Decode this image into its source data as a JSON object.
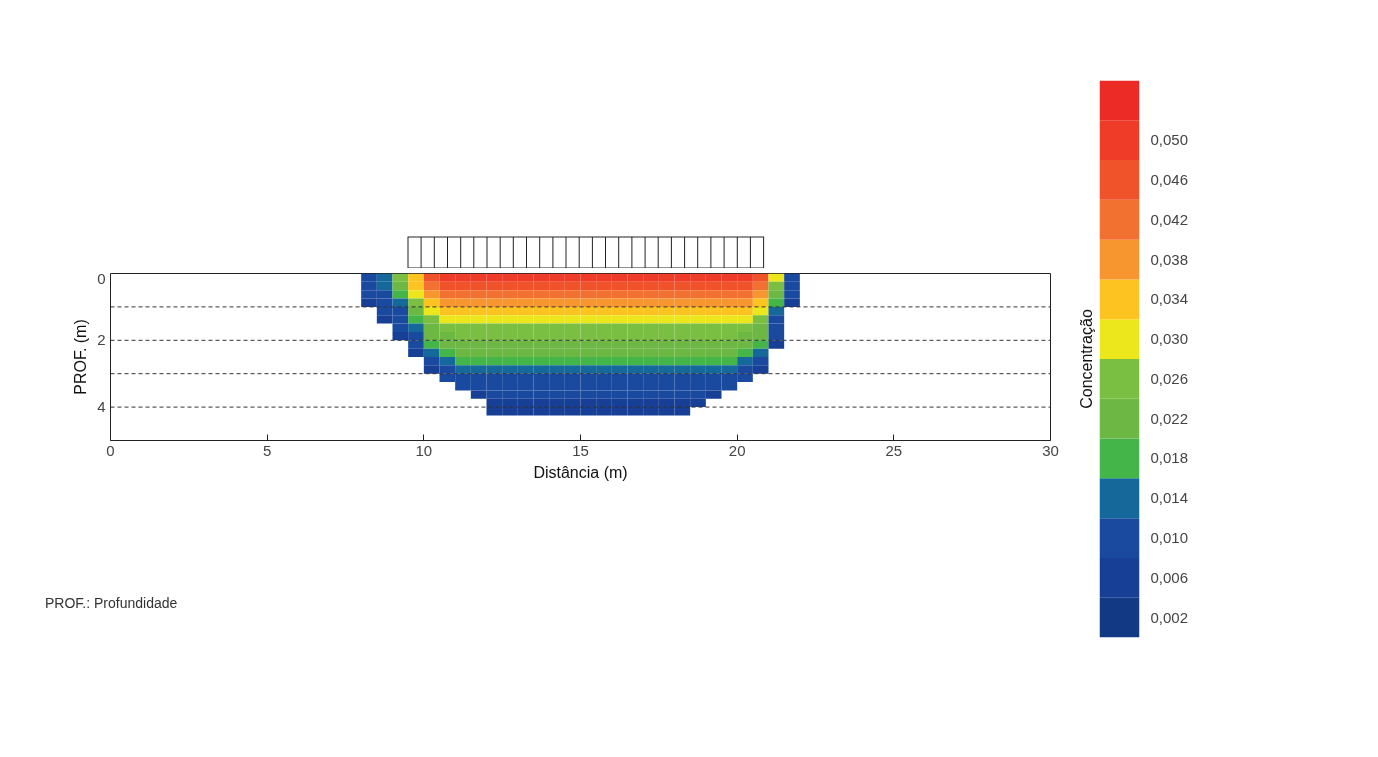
{
  "chart_data": {
    "type": "heatmap",
    "xlabel": "Distância (m)",
    "ylabel": "PROF. (m)",
    "clabel": "Concentração",
    "annotations": [
      "PROF.: Profundidade"
    ],
    "x": [
      8.25,
      8.75,
      9.25,
      9.75,
      10.25,
      10.75,
      11.25,
      11.75,
      12.25,
      12.75,
      13.25,
      13.75,
      14.25,
      14.75,
      15.25,
      15.75,
      16.25,
      16.75,
      17.25,
      17.75,
      18.25,
      18.75,
      19.25,
      19.75,
      20.25,
      20.75,
      21.25,
      21.75
    ],
    "y": [
      0.125,
      0.375,
      0.625,
      0.875,
      1.125,
      1.375,
      1.625,
      1.875,
      2.125,
      2.375,
      2.625,
      2.875,
      3.125,
      3.375,
      3.625,
      3.875,
      4.125
    ],
    "cells": [
      [
        0.01,
        0.014,
        0.026,
        0.034,
        0.046,
        0.05,
        0.05,
        0.05,
        0.05,
        0.05,
        0.05,
        0.05,
        0.05,
        0.05,
        0.05,
        0.05,
        0.05,
        0.05,
        0.05,
        0.05,
        0.05,
        0.05,
        0.05,
        0.05,
        0.05,
        0.046,
        0.03,
        0.01
      ],
      [
        0.01,
        0.014,
        0.022,
        0.034,
        0.042,
        0.046,
        0.046,
        0.046,
        0.046,
        0.046,
        0.046,
        0.046,
        0.046,
        0.046,
        0.046,
        0.046,
        0.046,
        0.046,
        0.046,
        0.046,
        0.046,
        0.046,
        0.046,
        0.046,
        0.046,
        0.042,
        0.026,
        0.01
      ],
      [
        0.01,
        0.01,
        0.018,
        0.03,
        0.038,
        0.042,
        0.042,
        0.042,
        0.042,
        0.042,
        0.042,
        0.042,
        0.042,
        0.042,
        0.042,
        0.042,
        0.042,
        0.042,
        0.042,
        0.042,
        0.042,
        0.042,
        0.042,
        0.042,
        0.042,
        0.038,
        0.022,
        0.01
      ],
      [
        0.006,
        0.01,
        0.014,
        0.026,
        0.034,
        0.038,
        0.038,
        0.038,
        0.038,
        0.038,
        0.038,
        0.038,
        0.038,
        0.038,
        0.038,
        0.038,
        0.038,
        0.038,
        0.038,
        0.038,
        0.038,
        0.038,
        0.038,
        0.038,
        0.038,
        0.034,
        0.018,
        0.006
      ],
      [
        null,
        0.01,
        0.01,
        0.022,
        0.03,
        0.034,
        0.034,
        0.034,
        0.034,
        0.034,
        0.034,
        0.034,
        0.034,
        0.034,
        0.034,
        0.034,
        0.034,
        0.034,
        0.034,
        0.034,
        0.034,
        0.034,
        0.034,
        0.034,
        0.034,
        0.03,
        0.014,
        null
      ],
      [
        null,
        0.006,
        0.01,
        0.018,
        0.026,
        0.03,
        0.03,
        0.03,
        0.03,
        0.03,
        0.03,
        0.03,
        0.03,
        0.03,
        0.03,
        0.03,
        0.03,
        0.03,
        0.03,
        0.03,
        0.03,
        0.03,
        0.03,
        0.03,
        0.03,
        0.026,
        0.01,
        null
      ],
      [
        null,
        null,
        0.01,
        0.014,
        0.022,
        0.026,
        0.026,
        0.026,
        0.026,
        0.026,
        0.026,
        0.026,
        0.026,
        0.026,
        0.026,
        0.026,
        0.026,
        0.026,
        0.026,
        0.026,
        0.026,
        0.026,
        0.026,
        0.026,
        0.026,
        0.022,
        0.01,
        null
      ],
      [
        null,
        null,
        0.006,
        0.01,
        0.022,
        0.022,
        0.026,
        0.026,
        0.026,
        0.026,
        0.026,
        0.026,
        0.026,
        0.026,
        0.026,
        0.026,
        0.026,
        0.026,
        0.026,
        0.026,
        0.026,
        0.026,
        0.026,
        0.026,
        0.022,
        0.022,
        0.01,
        null
      ],
      [
        null,
        null,
        null,
        0.01,
        0.018,
        0.022,
        0.022,
        0.022,
        0.022,
        0.022,
        0.022,
        0.022,
        0.022,
        0.022,
        0.022,
        0.022,
        0.022,
        0.022,
        0.022,
        0.022,
        0.022,
        0.022,
        0.022,
        0.022,
        0.022,
        0.018,
        0.006,
        null
      ],
      [
        null,
        null,
        null,
        0.006,
        0.014,
        0.018,
        0.022,
        0.022,
        0.022,
        0.022,
        0.022,
        0.022,
        0.022,
        0.022,
        0.022,
        0.022,
        0.022,
        0.022,
        0.022,
        0.022,
        0.022,
        0.022,
        0.022,
        0.022,
        0.018,
        0.014,
        null,
        null
      ],
      [
        null,
        null,
        null,
        null,
        0.01,
        0.014,
        0.018,
        0.018,
        0.018,
        0.018,
        0.018,
        0.018,
        0.018,
        0.018,
        0.018,
        0.018,
        0.018,
        0.018,
        0.018,
        0.018,
        0.018,
        0.018,
        0.018,
        0.018,
        0.014,
        0.01,
        null,
        null
      ],
      [
        null,
        null,
        null,
        null,
        0.006,
        0.01,
        0.014,
        0.014,
        0.014,
        0.014,
        0.014,
        0.014,
        0.014,
        0.014,
        0.014,
        0.014,
        0.014,
        0.014,
        0.014,
        0.014,
        0.014,
        0.014,
        0.014,
        0.014,
        0.01,
        0.006,
        null,
        null
      ],
      [
        null,
        null,
        null,
        null,
        null,
        0.01,
        0.01,
        0.01,
        0.01,
        0.01,
        0.01,
        0.01,
        0.01,
        0.01,
        0.01,
        0.01,
        0.01,
        0.01,
        0.01,
        0.01,
        0.01,
        0.01,
        0.01,
        0.01,
        0.01,
        null,
        null,
        null
      ],
      [
        null,
        null,
        null,
        null,
        null,
        null,
        0.01,
        0.01,
        0.01,
        0.01,
        0.01,
        0.01,
        0.01,
        0.01,
        0.01,
        0.01,
        0.01,
        0.01,
        0.01,
        0.01,
        0.01,
        0.01,
        0.01,
        0.01,
        null,
        null,
        null,
        null
      ],
      [
        null,
        null,
        null,
        null,
        null,
        null,
        null,
        0.006,
        0.01,
        0.01,
        0.01,
        0.01,
        0.01,
        0.01,
        0.01,
        0.01,
        0.01,
        0.01,
        0.01,
        0.01,
        0.01,
        0.01,
        0.006,
        null,
        null,
        null,
        null,
        null
      ],
      [
        null,
        null,
        null,
        null,
        null,
        null,
        null,
        null,
        0.006,
        0.006,
        0.006,
        0.006,
        0.006,
        0.006,
        0.006,
        0.006,
        0.006,
        0.006,
        0.006,
        0.006,
        0.006,
        0.006,
        null,
        null,
        null,
        null,
        null,
        null
      ],
      [
        null,
        null,
        null,
        null,
        null,
        null,
        null,
        null,
        0.006,
        0.006,
        0.006,
        0.006,
        0.006,
        0.006,
        0.006,
        0.006,
        0.006,
        0.006,
        0.006,
        0.006,
        0.006,
        null,
        null,
        null,
        null,
        null,
        null,
        null
      ]
    ],
    "colors": [
      "#123a84",
      "#163f95",
      "#1a4aa0",
      "#15699a",
      "#44b649",
      "#6db744",
      "#7bbf42",
      "#ece61d",
      "#fdc421",
      "#f7962f",
      "#f37130",
      "#f0522a",
      "#ee3c29",
      "#ec2b27"
    ],
    "clim": [
      0,
      0.056
    ],
    "cticks": [
      {
        "value": 0.002,
        "label": "0,002"
      },
      {
        "value": 0.006,
        "label": "0,006"
      },
      {
        "value": 0.01,
        "label": "0,010"
      },
      {
        "value": 0.014,
        "label": "0,014"
      },
      {
        "value": 0.018,
        "label": "0,018"
      },
      {
        "value": 0.022,
        "label": "0,022"
      },
      {
        "value": 0.026,
        "label": "0,026"
      },
      {
        "value": 0.03,
        "label": "0,030"
      },
      {
        "value": 0.034,
        "label": "0,034"
      },
      {
        "value": 0.038,
        "label": "0,038"
      },
      {
        "value": 0.042,
        "label": "0,042"
      },
      {
        "value": 0.046,
        "label": "0,046"
      },
      {
        "value": 0.05,
        "label": "0,050"
      }
    ],
    "xlim": [
      0,
      30
    ],
    "xticks": [
      0,
      5,
      10,
      15,
      20,
      25,
      30
    ],
    "ylim": [
      5,
      0
    ],
    "yticks": [
      0,
      2,
      4
    ],
    "ref_lines": [
      {
        "axis": "y",
        "value": 1,
        "line_style": "dashed",
        "color": "#333333"
      },
      {
        "axis": "y",
        "value": 2,
        "line_style": "dashed",
        "color": "#333333"
      },
      {
        "axis": "y",
        "value": 3,
        "line_style": "dashed",
        "color": "#333333"
      },
      {
        "axis": "y",
        "value": 4,
        "line_style": "dashed",
        "color": "#333333"
      }
    ],
    "grid": false
  }
}
